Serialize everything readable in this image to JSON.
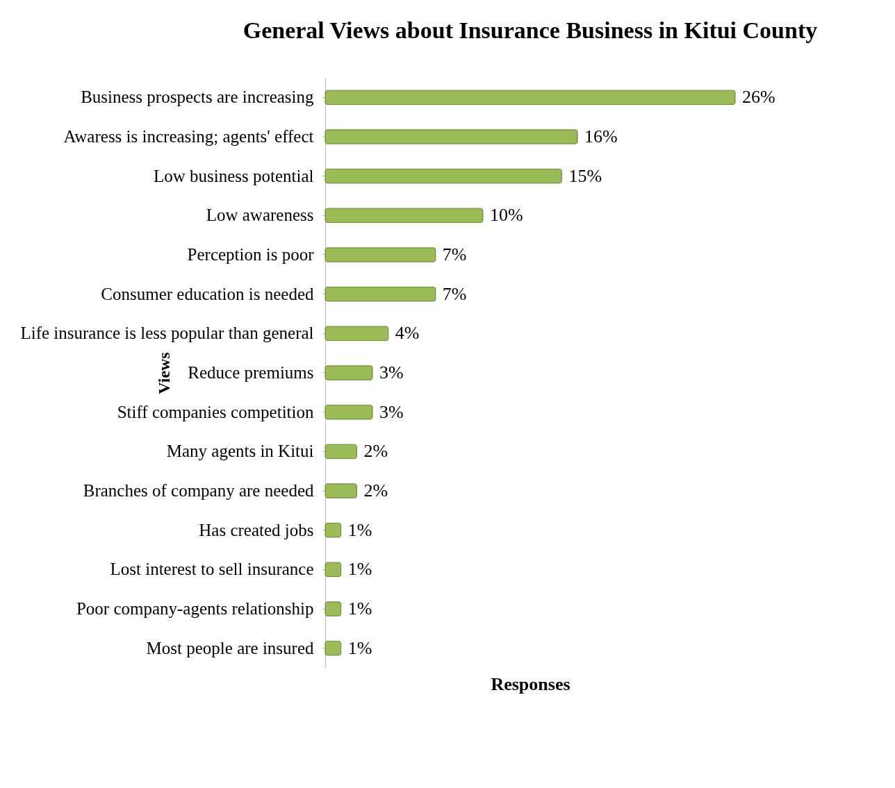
{
  "chart_data": {
    "type": "bar",
    "orientation": "horizontal",
    "title": "General Views about Insurance Business in Kitui County",
    "xlabel": "Responses",
    "ylabel": "Views",
    "categories": [
      "Business prospects are increasing",
      "Awaress is increasing; agents' effect",
      "Low business potential",
      "Low awareness",
      "Perception is poor",
      "Consumer education is needed",
      "Life insurance is less popular than general",
      "Reduce premiums",
      "Stiff companies competition",
      "Many agents in Kitui",
      "Branches of company are needed",
      "Has created jobs",
      "Lost interest to sell insurance",
      "Poor company-agents relationship",
      "Most people are insured"
    ],
    "values": [
      26,
      16,
      15,
      10,
      7,
      7,
      4,
      3,
      3,
      2,
      2,
      1,
      1,
      1,
      1
    ],
    "value_labels": [
      "26%",
      "16%",
      "15%",
      "10%",
      "7%",
      "7%",
      "4%",
      "3%",
      "3%",
      "2%",
      "2%",
      "1%",
      "1%",
      "1%",
      "1%"
    ],
    "color": "#9bbb59"
  }
}
